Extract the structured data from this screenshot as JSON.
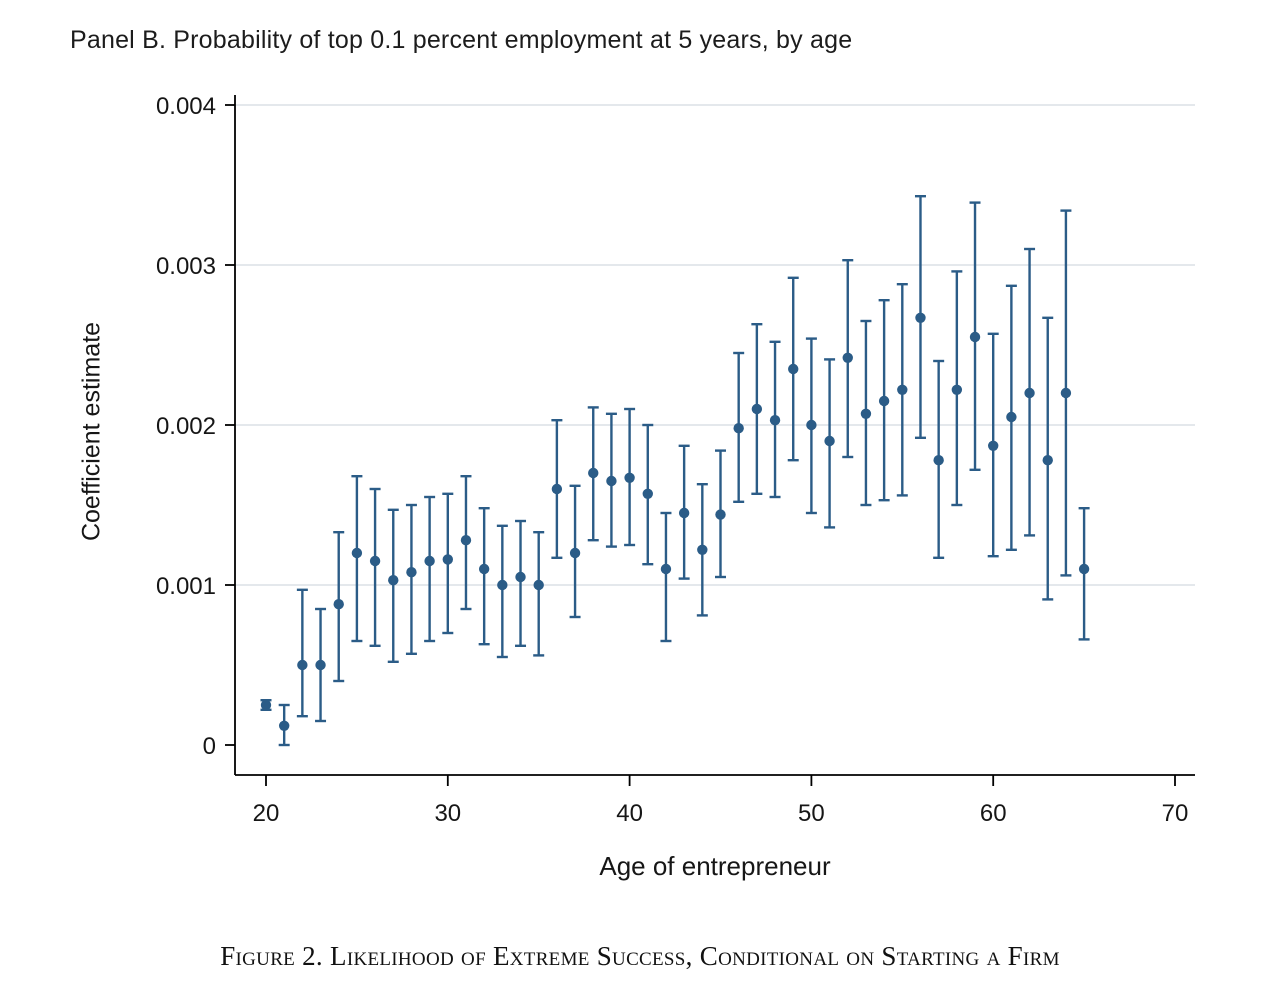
{
  "figure": {
    "caption": "Figure 2. Likelihood of Extreme Success, Conditional on Starting a Firm"
  },
  "chart_data": {
    "type": "scatter",
    "subtype": "coefficient-plot-with-error-bars",
    "title": "Panel B. Probability of top 0.1 percent employment at 5 years, by age",
    "xlabel": "Age of entrepreneur",
    "ylabel": "Coefficient estimate",
    "xlim": [
      18.3,
      71.1
    ],
    "ylim": [
      -0.0002,
      0.004
    ],
    "xticks": [
      20,
      30,
      40,
      50,
      60,
      70
    ],
    "yticks": [
      0,
      0.001,
      0.002,
      0.003,
      0.004
    ],
    "ytick_labels": [
      "0",
      "0.001",
      "0.002",
      "0.003",
      "0.004"
    ],
    "grid": "horizontal",
    "legend": "none",
    "background": "#ffffff",
    "marker_color": "#2b5c87",
    "grid_color": "#dce0e5",
    "axis_color": "#000000",
    "point_format": [
      "age",
      "estimate",
      "ci_low",
      "ci_high"
    ],
    "series": [
      {
        "name": "coefficient estimate with 95% CI",
        "points": [
          [
            20,
            0.00025,
            0.00022,
            0.00028
          ],
          [
            21,
            0.00012,
            0.0,
            0.00025
          ],
          [
            22,
            0.0005,
            0.00018,
            0.00097
          ],
          [
            23,
            0.0005,
            0.00015,
            0.00085
          ],
          [
            24,
            0.00088,
            0.0004,
            0.00133
          ],
          [
            25,
            0.0012,
            0.00065,
            0.00168
          ],
          [
            26,
            0.00115,
            0.00062,
            0.0016
          ],
          [
            27,
            0.00103,
            0.00052,
            0.00147
          ],
          [
            28,
            0.00108,
            0.00057,
            0.0015
          ],
          [
            29,
            0.00115,
            0.00065,
            0.00155
          ],
          [
            30,
            0.00116,
            0.0007,
            0.00157
          ],
          [
            31,
            0.00128,
            0.00085,
            0.00168
          ],
          [
            32,
            0.0011,
            0.00063,
            0.00148
          ],
          [
            33,
            0.001,
            0.00055,
            0.00137
          ],
          [
            34,
            0.00105,
            0.00062,
            0.0014
          ],
          [
            35,
            0.001,
            0.00056,
            0.00133
          ],
          [
            36,
            0.0016,
            0.00117,
            0.00203
          ],
          [
            37,
            0.0012,
            0.0008,
            0.00162
          ],
          [
            38,
            0.0017,
            0.00128,
            0.00211
          ],
          [
            39,
            0.00165,
            0.00124,
            0.00207
          ],
          [
            40,
            0.00167,
            0.00125,
            0.0021
          ],
          [
            41,
            0.00157,
            0.00113,
            0.002
          ],
          [
            42,
            0.0011,
            0.00065,
            0.00145
          ],
          [
            43,
            0.00145,
            0.00104,
            0.00187
          ],
          [
            44,
            0.00122,
            0.00081,
            0.00163
          ],
          [
            45,
            0.00144,
            0.00105,
            0.00184
          ],
          [
            46,
            0.00198,
            0.00152,
            0.00245
          ],
          [
            47,
            0.0021,
            0.00157,
            0.00263
          ],
          [
            48,
            0.00203,
            0.00155,
            0.00252
          ],
          [
            49,
            0.00235,
            0.00178,
            0.00292
          ],
          [
            50,
            0.002,
            0.00145,
            0.00254
          ],
          [
            51,
            0.0019,
            0.00136,
            0.00241
          ],
          [
            52,
            0.00242,
            0.0018,
            0.00303
          ],
          [
            53,
            0.00207,
            0.0015,
            0.00265
          ],
          [
            54,
            0.00215,
            0.00153,
            0.00278
          ],
          [
            55,
            0.00222,
            0.00156,
            0.00288
          ],
          [
            56,
            0.00267,
            0.00192,
            0.00343
          ],
          [
            57,
            0.00178,
            0.00117,
            0.0024
          ],
          [
            58,
            0.00222,
            0.0015,
            0.00296
          ],
          [
            59,
            0.00255,
            0.00172,
            0.00339
          ],
          [
            60,
            0.00187,
            0.00118,
            0.00257
          ],
          [
            61,
            0.00205,
            0.00122,
            0.00287
          ],
          [
            62,
            0.0022,
            0.00131,
            0.0031
          ],
          [
            63,
            0.00178,
            0.00091,
            0.00267
          ],
          [
            64,
            0.0022,
            0.00106,
            0.00334
          ],
          [
            65,
            0.0011,
            0.00066,
            0.00148
          ]
        ]
      }
    ]
  }
}
